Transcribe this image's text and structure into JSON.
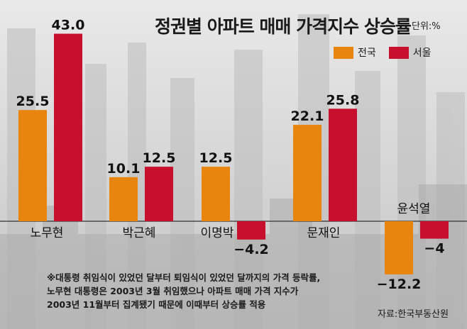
{
  "title": "정권별 아파트 매매 가격지수 상승률",
  "unit": "단위:%",
  "legend": [
    "전국",
    "서울"
  ],
  "colors": {
    "national": "#e8850f",
    "seoul": "#c8102e"
  },
  "note_lines": [
    "※대통령 취임식이 있었던 달부터 퇴임식이 있었던 달까지의 가격 등락률,",
    "노무현 대통령은 2003년 3월 취임했으나 아파트 매매 가격 지수가",
    "2003년 11월부터 집계됐기 때문에 이때부터 상승률 적용"
  ],
  "source": "자료:한국부동산원",
  "chart_data": {
    "type": "bar",
    "title": "정권별 아파트 매매 가격지수 상승률",
    "ylabel": "단위:%",
    "categories": [
      "노무현",
      "박근혜",
      "이명박",
      "문재인",
      "윤석열"
    ],
    "series": [
      {
        "name": "전국",
        "values": [
          25.5,
          10.1,
          12.5,
          22.1,
          -12.2
        ],
        "labels": [
          "25.5",
          "10.1",
          "12.5",
          "22.1",
          "−12.2"
        ]
      },
      {
        "name": "서울",
        "values": [
          43.0,
          12.5,
          -4.2,
          25.8,
          -4.0
        ],
        "labels": [
          "43.0",
          "12.5",
          "−4.2",
          "25.8",
          "−4"
        ]
      }
    ],
    "ylim": [
      -13,
      44
    ]
  }
}
